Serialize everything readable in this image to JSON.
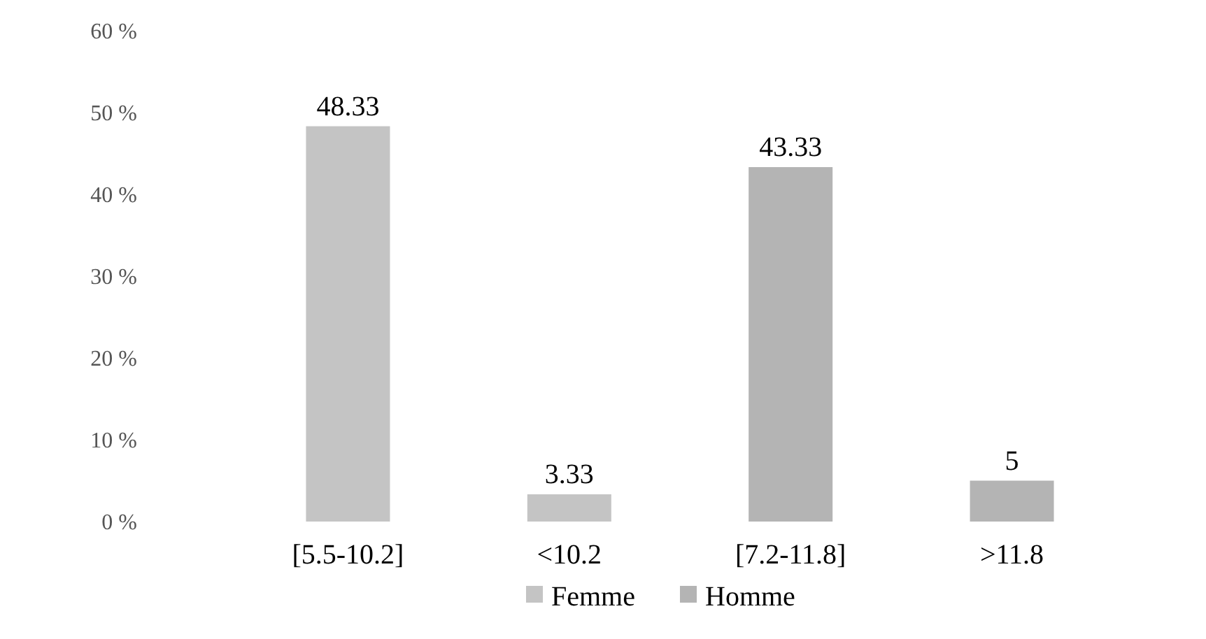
{
  "chart_data": {
    "type": "bar",
    "categories": [
      "[5.5-10.2]",
      "<10.2",
      "[7.2-11.8]",
      ">11.8"
    ],
    "series": [
      {
        "name": "Femme",
        "color": "#c4c4c4",
        "values": [
          48.33,
          3.33,
          null,
          null
        ]
      },
      {
        "name": "Homme",
        "color": "#b4b4b4",
        "values": [
          null,
          null,
          43.33,
          5
        ]
      }
    ],
    "ylim": [
      0,
      60
    ],
    "yticks": [
      {
        "value": 0,
        "label": "0 %"
      },
      {
        "value": 10,
        "label": "10 %"
      },
      {
        "value": 20,
        "label": "20 %"
      },
      {
        "value": 30,
        "label": "30 %"
      },
      {
        "value": 40,
        "label": "40 %"
      },
      {
        "value": 50,
        "label": "50 %"
      },
      {
        "value": 60,
        "label": "60 %"
      }
    ],
    "data_labels": true,
    "legend": "bottom",
    "grid": false
  }
}
